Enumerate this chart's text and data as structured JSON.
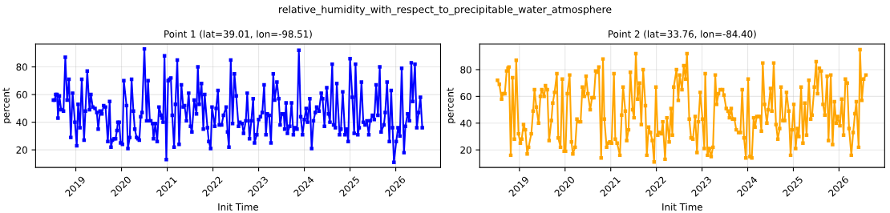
{
  "chart_data": [
    {
      "type": "line",
      "title": "Point 1 (lat=39.01, lon=-98.51)",
      "xlabel": "Init Time",
      "ylabel": "percent",
      "annotations": [
        "relative_humidity_with_respect_to_precipitable_water_atmosphere"
      ],
      "grid": true,
      "marker": "square",
      "line_style": "solid",
      "xlim": [
        2018.12,
        2026.98
      ],
      "xticks": [
        2019,
        2020,
        2021,
        2022,
        2023,
        2024,
        2025,
        2026
      ],
      "ylim": [
        7.3,
        96.5
      ],
      "yticks": [
        20,
        40,
        60,
        80
      ],
      "series": [
        {
          "color": "#0000ff",
          "x": [
            2018.51,
            2018.54,
            2018.56,
            2018.59,
            2018.61,
            2018.64,
            2018.68,
            2018.73,
            2018.77,
            2018.81,
            2018.85,
            2018.89,
            2018.93,
            2018.98,
            2019.02,
            2019.05,
            2019.09,
            2019.13,
            2019.18,
            2019.21,
            2019.25,
            2019.3,
            2019.33,
            2019.37,
            2019.42,
            2019.46,
            2019.49,
            2019.53,
            2019.57,
            2019.61,
            2019.65,
            2019.7,
            2019.74,
            2019.77,
            2019.8,
            2019.84,
            2019.87,
            2019.9,
            2019.92,
            2019.95,
            2019.98,
            2020.02,
            2020.05,
            2020.11,
            2020.14,
            2020.18,
            2020.22,
            2020.26,
            2020.29,
            2020.33,
            2020.36,
            2020.39,
            2020.42,
            2020.45,
            2020.5,
            2020.55,
            2020.58,
            2020.62,
            2020.64,
            2020.68,
            2020.7,
            2020.74,
            2020.78,
            2020.82,
            2020.87,
            2020.89,
            2020.91,
            2020.94,
            2020.98,
            2021.02,
            2021.05,
            2021.08,
            2021.11,
            2021.15,
            2021.18,
            2021.22,
            2021.26,
            2021.31,
            2021.35,
            2021.38,
            2021.42,
            2021.47,
            2021.51,
            2021.54,
            2021.59,
            2021.64,
            2021.67,
            2021.7,
            2021.75,
            2021.79,
            2021.82,
            2021.88,
            2021.91,
            2021.95,
            2021.98,
            2022.04,
            2022.07,
            2022.11,
            2022.14,
            2022.19,
            2022.23,
            2022.29,
            2022.32,
            2022.35,
            2022.39,
            2022.43,
            2022.47,
            2022.51,
            2022.56,
            2022.59,
            2022.64,
            2022.67,
            2022.72,
            2022.75,
            2022.8,
            2022.84,
            2022.88,
            2022.91,
            2022.96,
            2023.0,
            2023.04,
            2023.08,
            2023.12,
            2023.16,
            2023.19,
            2023.23,
            2023.27,
            2023.32,
            2023.35,
            2023.4,
            2023.44,
            2023.47,
            2023.51,
            2023.55,
            2023.57,
            2023.6,
            2023.63,
            2023.68,
            2023.72,
            2023.76,
            2023.8,
            2023.84,
            2023.88,
            2023.92,
            2023.96,
            2024.0,
            2024.04,
            2024.07,
            2024.12,
            2024.16,
            2024.2,
            2024.24,
            2024.27,
            2024.32,
            2024.37,
            2024.4,
            2024.44,
            2024.49,
            2024.53,
            2024.56,
            2024.61,
            2024.64,
            2024.68,
            2024.71,
            2024.77,
            2024.8,
            2024.84,
            2024.89,
            2024.93,
            2024.96,
            2025.0,
            2025.05,
            2025.09,
            2025.12,
            2025.17,
            2025.2,
            2025.25,
            2025.29,
            2025.33,
            2025.37,
            2025.41,
            2025.44,
            2025.49,
            2025.53,
            2025.57,
            2025.61,
            2025.65,
            2025.68,
            2025.74,
            2025.77,
            2025.81,
            2025.86,
            2025.9,
            2025.93,
            2025.96,
            2026.01,
            2026.05,
            2026.09,
            2026.13,
            2026.18,
            2026.21,
            2026.26,
            2026.3,
            2026.34,
            2026.37,
            2026.42,
            2026.46,
            2026.5,
            2026.54,
            2026.58
          ],
          "values": [
            56,
            56,
            60,
            60,
            43,
            59,
            49,
            48,
            87,
            56,
            71,
            29,
            61,
            40,
            23,
            53,
            36,
            71,
            27,
            48,
            77,
            49,
            60,
            51,
            50,
            47,
            35,
            48,
            46,
            52,
            51,
            26,
            55,
            22,
            27,
            28,
            28,
            34,
            40,
            40,
            25,
            24,
            70,
            52,
            21,
            29,
            71,
            48,
            35,
            29,
            28,
            27,
            44,
            47,
            93,
            41,
            70,
            41,
            41,
            39,
            28,
            39,
            26,
            51,
            45,
            43,
            40,
            88,
            13,
            70,
            71,
            72,
            45,
            22,
            53,
            85,
            24,
            67,
            51,
            52,
            41,
            61,
            37,
            33,
            56,
            46,
            80,
            53,
            68,
            35,
            60,
            36,
            26,
            21,
            51,
            37,
            50,
            63,
            38,
            38,
            45,
            51,
            33,
            22,
            85,
            39,
            75,
            59,
            37,
            40,
            39,
            32,
            41,
            61,
            28,
            41,
            57,
            25,
            31,
            42,
            44,
            47,
            67,
            31,
            46,
            45,
            25,
            75,
            56,
            69,
            57,
            38,
            46,
            46,
            35,
            54,
            32,
            37,
            54,
            31,
            36,
            35,
            92,
            44,
            31,
            42,
            50,
            40,
            57,
            21,
            41,
            47,
            51,
            48,
            61,
            57,
            37,
            65,
            46,
            40,
            82,
            38,
            36,
            68,
            31,
            35,
            62,
            31,
            35,
            26,
            86,
            58,
            32,
            82,
            31,
            36,
            69,
            40,
            38,
            41,
            31,
            41,
            45,
            42,
            67,
            45,
            80,
            33,
            38,
            47,
            69,
            26,
            63,
            36,
            11,
            26,
            36,
            30,
            79,
            18,
            37,
            46,
            41,
            83,
            55,
            82,
            36,
            47,
            58,
            36
          ]
        }
      ]
    },
    {
      "type": "line",
      "title": "Point 2 (lat=33.76, lon=-84.40)",
      "xlabel": "Init Time",
      "ylabel": "percent",
      "grid": true,
      "marker": "square",
      "line_style": "solid",
      "xlim": [
        2018.13,
        2027.0
      ],
      "xticks": [
        2019,
        2020,
        2021,
        2022,
        2023,
        2024,
        2025,
        2026
      ],
      "ylim": [
        6.9,
        99.1
      ],
      "yticks": [
        20,
        40,
        60,
        80
      ],
      "series": [
        {
          "color": "#ffa500",
          "x": [
            2018.52,
            2018.56,
            2018.61,
            2018.64,
            2018.68,
            2018.72,
            2018.75,
            2018.77,
            2018.81,
            2018.85,
            2018.89,
            2018.93,
            2018.98,
            2019.02,
            2019.05,
            2019.09,
            2019.13,
            2019.17,
            2019.2,
            2019.26,
            2019.3,
            2019.33,
            2019.37,
            2019.42,
            2019.46,
            2019.49,
            2019.54,
            2019.57,
            2019.61,
            2019.65,
            2019.7,
            2019.73,
            2019.77,
            2019.82,
            2019.85,
            2019.9,
            2019.94,
            2019.98,
            2020.01,
            2020.05,
            2020.1,
            2020.14,
            2020.17,
            2020.22,
            2020.26,
            2020.3,
            2020.34,
            2020.38,
            2020.42,
            2020.46,
            2020.5,
            2020.55,
            2020.59,
            2020.63,
            2020.67,
            2020.7,
            2020.74,
            2020.79,
            2020.83,
            2020.86,
            2020.91,
            2020.94,
            2020.98,
            2021.02,
            2021.07,
            2021.1,
            2021.14,
            2021.2,
            2021.24,
            2021.27,
            2021.32,
            2021.35,
            2021.39,
            2021.43,
            2021.48,
            2021.51,
            2021.55,
            2021.59,
            2021.63,
            2021.67,
            2021.71,
            2021.76,
            2021.79,
            2021.83,
            2021.87,
            2021.91,
            2021.95,
            2021.99,
            2022.03,
            2022.06,
            2022.11,
            2022.14,
            2022.19,
            2022.23,
            2022.28,
            2022.32,
            2022.35,
            2022.38,
            2022.44,
            2022.48,
            2022.51,
            2022.56,
            2022.6,
            2022.64,
            2022.67,
            2022.72,
            2022.76,
            2022.8,
            2022.85,
            2022.89,
            2022.92,
            2022.96,
            2023.01,
            2023.05,
            2023.07,
            2023.12,
            2023.16,
            2023.2,
            2023.24,
            2023.29,
            2023.32,
            2023.36,
            2023.4,
            2023.45,
            2023.48,
            2023.53,
            2023.57,
            2023.6,
            2023.64,
            2023.67,
            2023.71,
            2023.75,
            2023.8,
            2023.84,
            2023.88,
            2023.92,
            2023.96,
            2024.01,
            2024.05,
            2024.09,
            2024.13,
            2024.16,
            2024.2,
            2024.24,
            2024.27,
            2024.3,
            2024.33,
            2024.37,
            2024.42,
            2024.45,
            2024.5,
            2024.53,
            2024.57,
            2024.62,
            2024.66,
            2024.7,
            2024.73,
            2024.77,
            2024.81,
            2024.85,
            2024.9,
            2024.94,
            2024.97,
            2025.01,
            2025.05,
            2025.09,
            2025.12,
            2025.17,
            2025.21,
            2025.25,
            2025.29,
            2025.34,
            2025.38,
            2025.41,
            2025.46,
            2025.5,
            2025.53,
            2025.57,
            2025.61,
            2025.65,
            2025.69,
            2025.74,
            2025.77,
            2025.82,
            2025.86,
            2025.9,
            2025.94,
            2025.97,
            2026.02,
            2026.06,
            2026.1,
            2026.14,
            2026.18,
            2026.22,
            2026.27,
            2026.31,
            2026.35,
            2026.38,
            2026.43,
            2026.46,
            2026.5,
            2026.54,
            2026.59
          ],
          "values": [
            72,
            69,
            58,
            62,
            62,
            79,
            81,
            82,
            16,
            74,
            28,
            87,
            32,
            25,
            28,
            39,
            35,
            17,
            22,
            32,
            49,
            65,
            52,
            40,
            60,
            65,
            60,
            68,
            65,
            27,
            42,
            55,
            63,
            77,
            29,
            22,
            73,
            19,
            19,
            62,
            76,
            26,
            17,
            22,
            43,
            41,
            41,
            67,
            60,
            75,
            62,
            50,
            59,
            59,
            79,
            78,
            82,
            14,
            88,
            43,
            22,
            25,
            26,
            25,
            77,
            28,
            25,
            16,
            46,
            67,
            49,
            27,
            35,
            78,
            50,
            44,
            92,
            58,
            70,
            39,
            80,
            53,
            16,
            37,
            33,
            27,
            11,
            67,
            31,
            33,
            32,
            41,
            13,
            44,
            26,
            51,
            31,
            67,
            80,
            57,
            76,
            65,
            83,
            73,
            92,
            43,
            29,
            28,
            45,
            18,
            41,
            63,
            43,
            21,
            77,
            16,
            21,
            15,
            22,
            76,
            54,
            62,
            65,
            65,
            61,
            51,
            49,
            44,
            51,
            43,
            43,
            35,
            33,
            33,
            65,
            29,
            14,
            73,
            15,
            14,
            44,
            37,
            45,
            45,
            45,
            34,
            85,
            54,
            40,
            50,
            66,
            49,
            85,
            39,
            28,
            36,
            67,
            42,
            42,
            63,
            49,
            16,
            35,
            54,
            21,
            36,
            30,
            67,
            25,
            55,
            31,
            72,
            43,
            46,
            67,
            86,
            62,
            81,
            79,
            54,
            46,
            75,
            27,
            76,
            24,
            56,
            40,
            45,
            38,
            58,
            31,
            73,
            70,
            36,
            16,
            33,
            47,
            56,
            22,
            95,
            57,
            73,
            76
          ]
        }
      ]
    }
  ]
}
